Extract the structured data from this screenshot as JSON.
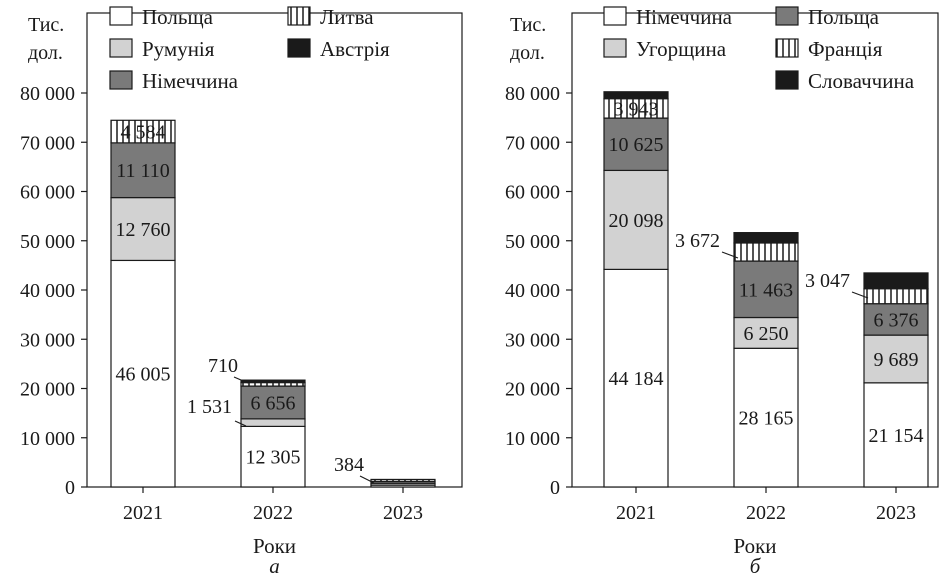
{
  "colors": {
    "white": "#ffffff",
    "light_gray": "#d2d2d2",
    "dark_gray": "#7a7a7a",
    "hatched": "vertical-lines",
    "black": "#1a1a1a"
  },
  "chart_data": [
    {
      "type": "bar",
      "stacked": true,
      "panel_label": "а",
      "unit_label": [
        "Тис.",
        "дол."
      ],
      "xlabel": "Роки",
      "ylabel": "",
      "ylim": [
        0,
        80000
      ],
      "yticks": [
        0,
        10000,
        20000,
        30000,
        40000,
        50000,
        60000,
        70000,
        80000
      ],
      "ytick_labels": [
        "0",
        "10 000",
        "20 000",
        "30 000",
        "40 000",
        "50 000",
        "60 000",
        "70 000",
        "80 000"
      ],
      "categories": [
        "2021",
        "2022",
        "2023"
      ],
      "legend": {
        "placement": "top",
        "entries": [
          "Польща",
          "Литва",
          "Румунія",
          "Австрія",
          "Німеччина"
        ]
      },
      "series": [
        {
          "name": "Польща",
          "fill": "white",
          "values": [
            46005,
            12305,
            384
          ]
        },
        {
          "name": "Румунія",
          "fill": "light_gray",
          "values": [
            12760,
            1531,
            384
          ]
        },
        {
          "name": "Німеччина",
          "fill": "dark_gray",
          "values": [
            11110,
            6656,
            384
          ]
        },
        {
          "name": "Литва",
          "fill": "hatched",
          "values": [
            4584,
            710,
            384
          ]
        },
        {
          "name": "Австрія",
          "fill": "black",
          "values": [
            0,
            500,
            0
          ]
        }
      ],
      "data_labels": [
        {
          "series": 0,
          "category": 0,
          "text": "46 005"
        },
        {
          "series": 1,
          "category": 0,
          "text": "12 760"
        },
        {
          "series": 2,
          "category": 0,
          "text": "11 110"
        },
        {
          "series": 3,
          "category": 0,
          "text": "4 584"
        },
        {
          "series": 0,
          "category": 1,
          "text": "12 305"
        },
        {
          "series": 1,
          "category": 1,
          "text": "1 531",
          "callout": true
        },
        {
          "series": 2,
          "category": 1,
          "text": "6 656"
        },
        {
          "series": 3,
          "category": 1,
          "text": "710",
          "callout": true
        },
        {
          "series": 1,
          "category": 2,
          "text": "384",
          "callout": true
        }
      ]
    },
    {
      "type": "bar",
      "stacked": true,
      "panel_label": "б",
      "unit_label": [
        "Тис.",
        "дол."
      ],
      "xlabel": "Роки",
      "ylabel": "",
      "ylim": [
        0,
        80000
      ],
      "yticks": [
        0,
        10000,
        20000,
        30000,
        40000,
        50000,
        60000,
        70000,
        80000
      ],
      "ytick_labels": [
        "0",
        "10 000",
        "20 000",
        "30 000",
        "40 000",
        "50 000",
        "60 000",
        "70 000",
        "80 000"
      ],
      "categories": [
        "2021",
        "2022",
        "2023"
      ],
      "legend": {
        "placement": "top",
        "entries": [
          "Німеччина",
          "Польща",
          "Угорщина",
          "Франція",
          "Словаччина"
        ]
      },
      "series": [
        {
          "name": "Німеччина",
          "fill": "white",
          "values": [
            44184,
            28165,
            21154
          ]
        },
        {
          "name": "Угорщина",
          "fill": "light_gray",
          "values": [
            20098,
            6250,
            9689
          ]
        },
        {
          "name": "Польща",
          "fill": "dark_gray",
          "values": [
            10625,
            11463,
            6376
          ]
        },
        {
          "name": "Франція",
          "fill": "hatched",
          "values": [
            3943,
            3672,
            3047
          ]
        },
        {
          "name": "Словаччина",
          "fill": "black",
          "values": [
            1400,
            2100,
            3200
          ]
        }
      ],
      "data_labels": [
        {
          "series": 0,
          "category": 0,
          "text": "44 184"
        },
        {
          "series": 1,
          "category": 0,
          "text": "20 098"
        },
        {
          "series": 2,
          "category": 0,
          "text": "10 625"
        },
        {
          "series": 3,
          "category": 0,
          "text": "3 943"
        },
        {
          "series": 0,
          "category": 1,
          "text": "28 165"
        },
        {
          "series": 1,
          "category": 1,
          "text": "6 250"
        },
        {
          "series": 2,
          "category": 1,
          "text": "11 463"
        },
        {
          "series": 3,
          "category": 1,
          "text": "3 672",
          "callout": true
        },
        {
          "series": 0,
          "category": 2,
          "text": "21 154"
        },
        {
          "series": 1,
          "category": 2,
          "text": "9 689"
        },
        {
          "series": 2,
          "category": 2,
          "text": "6 376"
        },
        {
          "series": 3,
          "category": 2,
          "text": "3 047",
          "callout": true
        }
      ]
    }
  ]
}
